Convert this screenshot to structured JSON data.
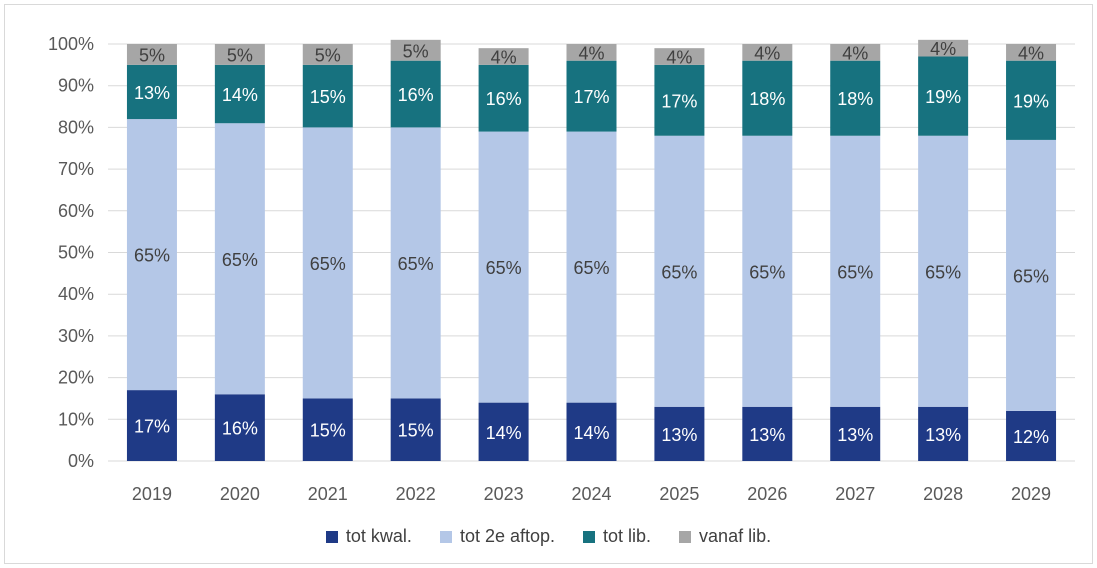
{
  "chart_data": {
    "type": "bar",
    "stacked": true,
    "categories": [
      "2019",
      "2020",
      "2021",
      "2022",
      "2023",
      "2024",
      "2025",
      "2026",
      "2027",
      "2028",
      "2029"
    ],
    "series": [
      {
        "name": "tot kwal.",
        "color": "#1f3a86",
        "values": [
          17,
          16,
          15,
          15,
          14,
          14,
          13,
          13,
          13,
          13,
          12
        ],
        "labels": [
          "17%",
          "16%",
          "15%",
          "15%",
          "14%",
          "14%",
          "13%",
          "13%",
          "13%",
          "13%",
          "12%"
        ]
      },
      {
        "name": "tot 2e aftop.",
        "color": "#b4c7e7",
        "values": [
          65,
          65,
          65,
          65,
          65,
          65,
          65,
          65,
          65,
          65,
          65
        ],
        "labels": [
          "65%",
          "65%",
          "65%",
          "65%",
          "65%",
          "65%",
          "65%",
          "65%",
          "65%",
          "65%",
          "65%"
        ]
      },
      {
        "name": "tot lib.",
        "color": "#17727f",
        "values": [
          13,
          14,
          15,
          16,
          16,
          17,
          17,
          18,
          18,
          19,
          19
        ],
        "labels": [
          "13%",
          "14%",
          "15%",
          "16%",
          "16%",
          "17%",
          "17%",
          "18%",
          "18%",
          "19%",
          "19%"
        ]
      },
      {
        "name": "vanaf lib.",
        "color": "#a6a6a6",
        "values": [
          5,
          5,
          5,
          5,
          4,
          4,
          4,
          4,
          4,
          4,
          4
        ],
        "labels": [
          "5%",
          "5%",
          "5%",
          "5%",
          "4%",
          "4%",
          "4%",
          "4%",
          "4%",
          "4%",
          "4%"
        ]
      }
    ],
    "ylim": [
      0,
      100
    ],
    "yticks": [
      "0%",
      "10%",
      "20%",
      "30%",
      "40%",
      "50%",
      "60%",
      "70%",
      "80%",
      "90%",
      "100%"
    ],
    "grid": true,
    "legend_position": "bottom"
  }
}
